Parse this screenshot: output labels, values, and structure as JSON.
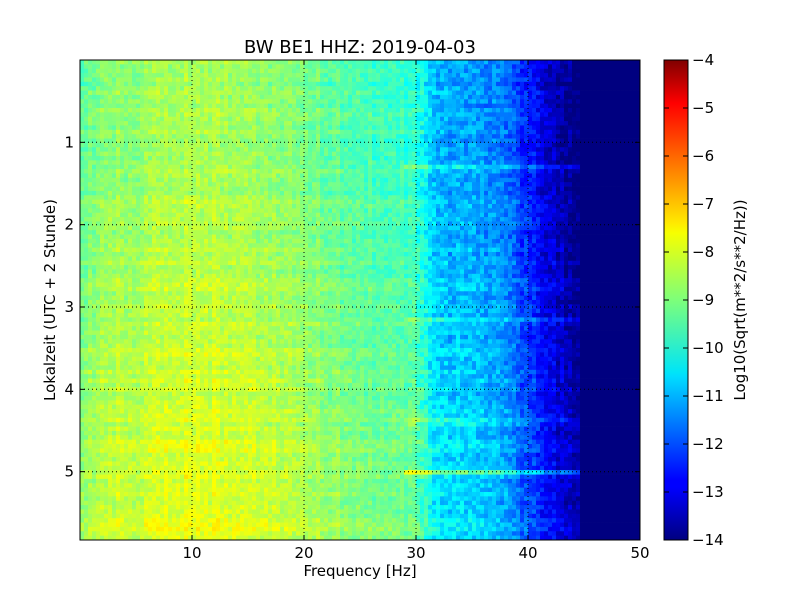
{
  "chart_data": {
    "type": "heatmap",
    "title": "BW BE1 HHZ: 2019-04-03",
    "xlabel": "Frequency [Hz]",
    "ylabel": "Lokalzeit (UTC + 2 Stunde)",
    "xlim": [
      0,
      50
    ],
    "ylim": [
      0,
      5.83
    ],
    "y_inverted": true,
    "x_ticks": [
      10,
      20,
      30,
      40,
      50
    ],
    "y_ticks": [
      1,
      2,
      3,
      4,
      5
    ],
    "grid": true,
    "colorbar": {
      "label": "Log10(Sqrt(m**2/s**2/Hz))",
      "range": [
        -14,
        -4
      ],
      "ticks": [
        -4,
        -5,
        -6,
        -7,
        -8,
        -9,
        -10,
        -11,
        -12,
        -13,
        -14
      ],
      "colormap": "jet"
    },
    "frequency_profile_hz": [
      0,
      2,
      5,
      10,
      15,
      20,
      25,
      30,
      31,
      32,
      35,
      38,
      40,
      42,
      44,
      45,
      50
    ],
    "frequency_profile_log10": [
      -9.2,
      -8.6,
      -8.6,
      -8.3,
      -8.5,
      -8.8,
      -9.3,
      -9.6,
      -10.2,
      -10.8,
      -11.0,
      -11.4,
      -12.3,
      -13.0,
      -13.8,
      -14.0,
      -14.0
    ],
    "time_trend_per_hour": 0.13,
    "horizontal_line_hours": [
      1.3,
      3.15,
      4.4,
      5.02
    ],
    "horizontal_line_strength": [
      0.8,
      0.8,
      0.5,
      1.5
    ]
  }
}
